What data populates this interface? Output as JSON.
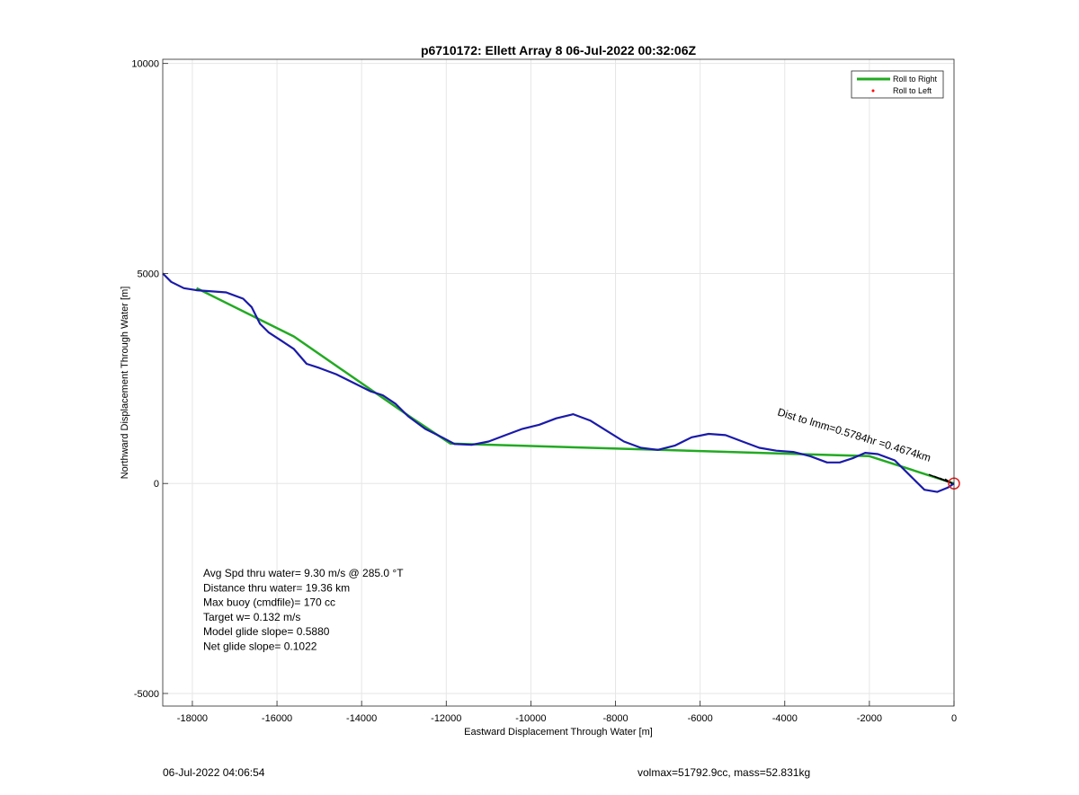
{
  "chart_data": {
    "type": "line",
    "title": "p6710172: Ellett Array 8 06-Jul-2022 00:32:06Z",
    "xlabel": "Eastward Displacement Through Water [m]",
    "ylabel": "Northward Displacement Through Water [m]",
    "xlim": [
      -18700,
      0
    ],
    "ylim": [
      -5300,
      10100
    ],
    "x_ticks": [
      -18000,
      -16000,
      -14000,
      -12000,
      -10000,
      -8000,
      -6000,
      -4000,
      -2000,
      0
    ],
    "y_ticks": [
      -5000,
      0,
      5000,
      10000
    ],
    "grid": true,
    "legend_position": "top-right",
    "legend": [
      {
        "label": "Roll to Right",
        "color": "#22aa22",
        "style": "line"
      },
      {
        "label": "Roll to Left",
        "color": "#ff0000",
        "style": "dot"
      }
    ],
    "series": [
      {
        "name": "Roll to Right",
        "color": "#22aa22",
        "x": [
          0,
          -2000,
          -11900,
          -12800,
          -15600,
          -17900
        ],
        "y": [
          0,
          650,
          950,
          1550,
          3500,
          4650
        ]
      },
      {
        "color": "#1a1aaa",
        "x": [
          0,
          -150,
          -400,
          -700,
          -1000,
          -1400,
          -1800,
          -2100,
          -2400,
          -2700,
          -3000,
          -3400,
          -3800,
          -4200,
          -4600,
          -5000,
          -5400,
          -5800,
          -6200,
          -6600,
          -7000,
          -7400,
          -7800,
          -8200,
          -8600,
          -9000,
          -9400,
          -9800,
          -10200,
          -10600,
          -11000,
          -11400,
          -11800,
          -12100,
          -12500,
          -12900,
          -13200,
          -13500,
          -13800,
          -14200,
          -14600,
          -15000,
          -15300,
          -15600,
          -15900,
          -16200,
          -16400,
          -16600,
          -16800,
          -17200,
          -17600,
          -17900,
          -18200,
          -18500,
          -18700
        ],
        "y": [
          0,
          -100,
          -200,
          -150,
          150,
          550,
          700,
          730,
          600,
          500,
          500,
          650,
          750,
          780,
          850,
          1000,
          1150,
          1180,
          1100,
          900,
          800,
          850,
          1000,
          1250,
          1500,
          1650,
          1550,
          1400,
          1300,
          1150,
          1000,
          920,
          940,
          1100,
          1300,
          1600,
          1900,
          2100,
          2200,
          2400,
          2600,
          2750,
          2850,
          3200,
          3400,
          3600,
          3800,
          4200,
          4400,
          4550,
          4580,
          4600,
          4650,
          4800,
          5000
        ]
      }
    ],
    "start_marker": {
      "x": 0,
      "y": 0,
      "color": "#dd2222"
    },
    "waypoint_label": "Dist to lmm=0.5784hr =0.4674km",
    "summary": [
      "Avg Spd thru water=  9.30 m/s @ 285.0 °T",
      "Distance thru water= 19.36 km",
      "Max buoy (cmdfile)= 170 cc",
      "Target w= 0.132 m/s",
      "Model glide slope= 0.5880",
      "Net glide slope= 0.1022"
    ]
  },
  "footer": {
    "timestamp": "06-Jul-2022 04:06:54",
    "stats": "volmax=51792.9cc, mass=52.831kg"
  }
}
